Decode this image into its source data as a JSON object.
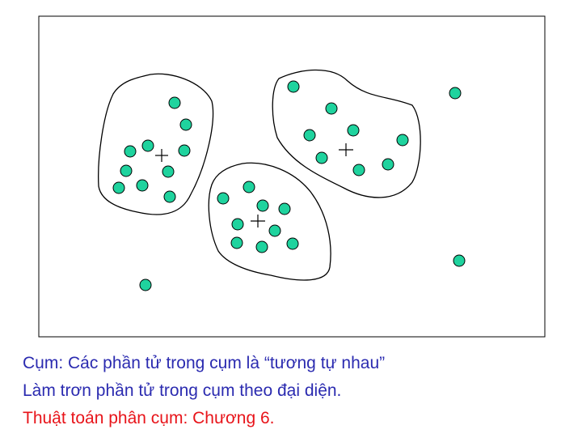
{
  "colors": {
    "point_fill": "#1fd39e",
    "point_stroke": "#000000",
    "frame": "#000000",
    "caption_blue": "#2b2bb0",
    "caption_red": "#e8141a"
  },
  "icons": [
    "cross-marker-icon"
  ],
  "captions": {
    "line1": "Cụm: Các phần tử trong cụm là “tương tự nhau”",
    "line2": "Làm trơn phần tử trong cụm theo đại diện.",
    "line3": "Thuật toán phân cụm: Chương 6."
  },
  "clusters": [
    {
      "id": "left",
      "point_count": 11
    },
    {
      "id": "right",
      "point_count": 9
    },
    {
      "id": "middle",
      "point_count": 10
    }
  ],
  "outliers": {
    "point_count": 3
  }
}
